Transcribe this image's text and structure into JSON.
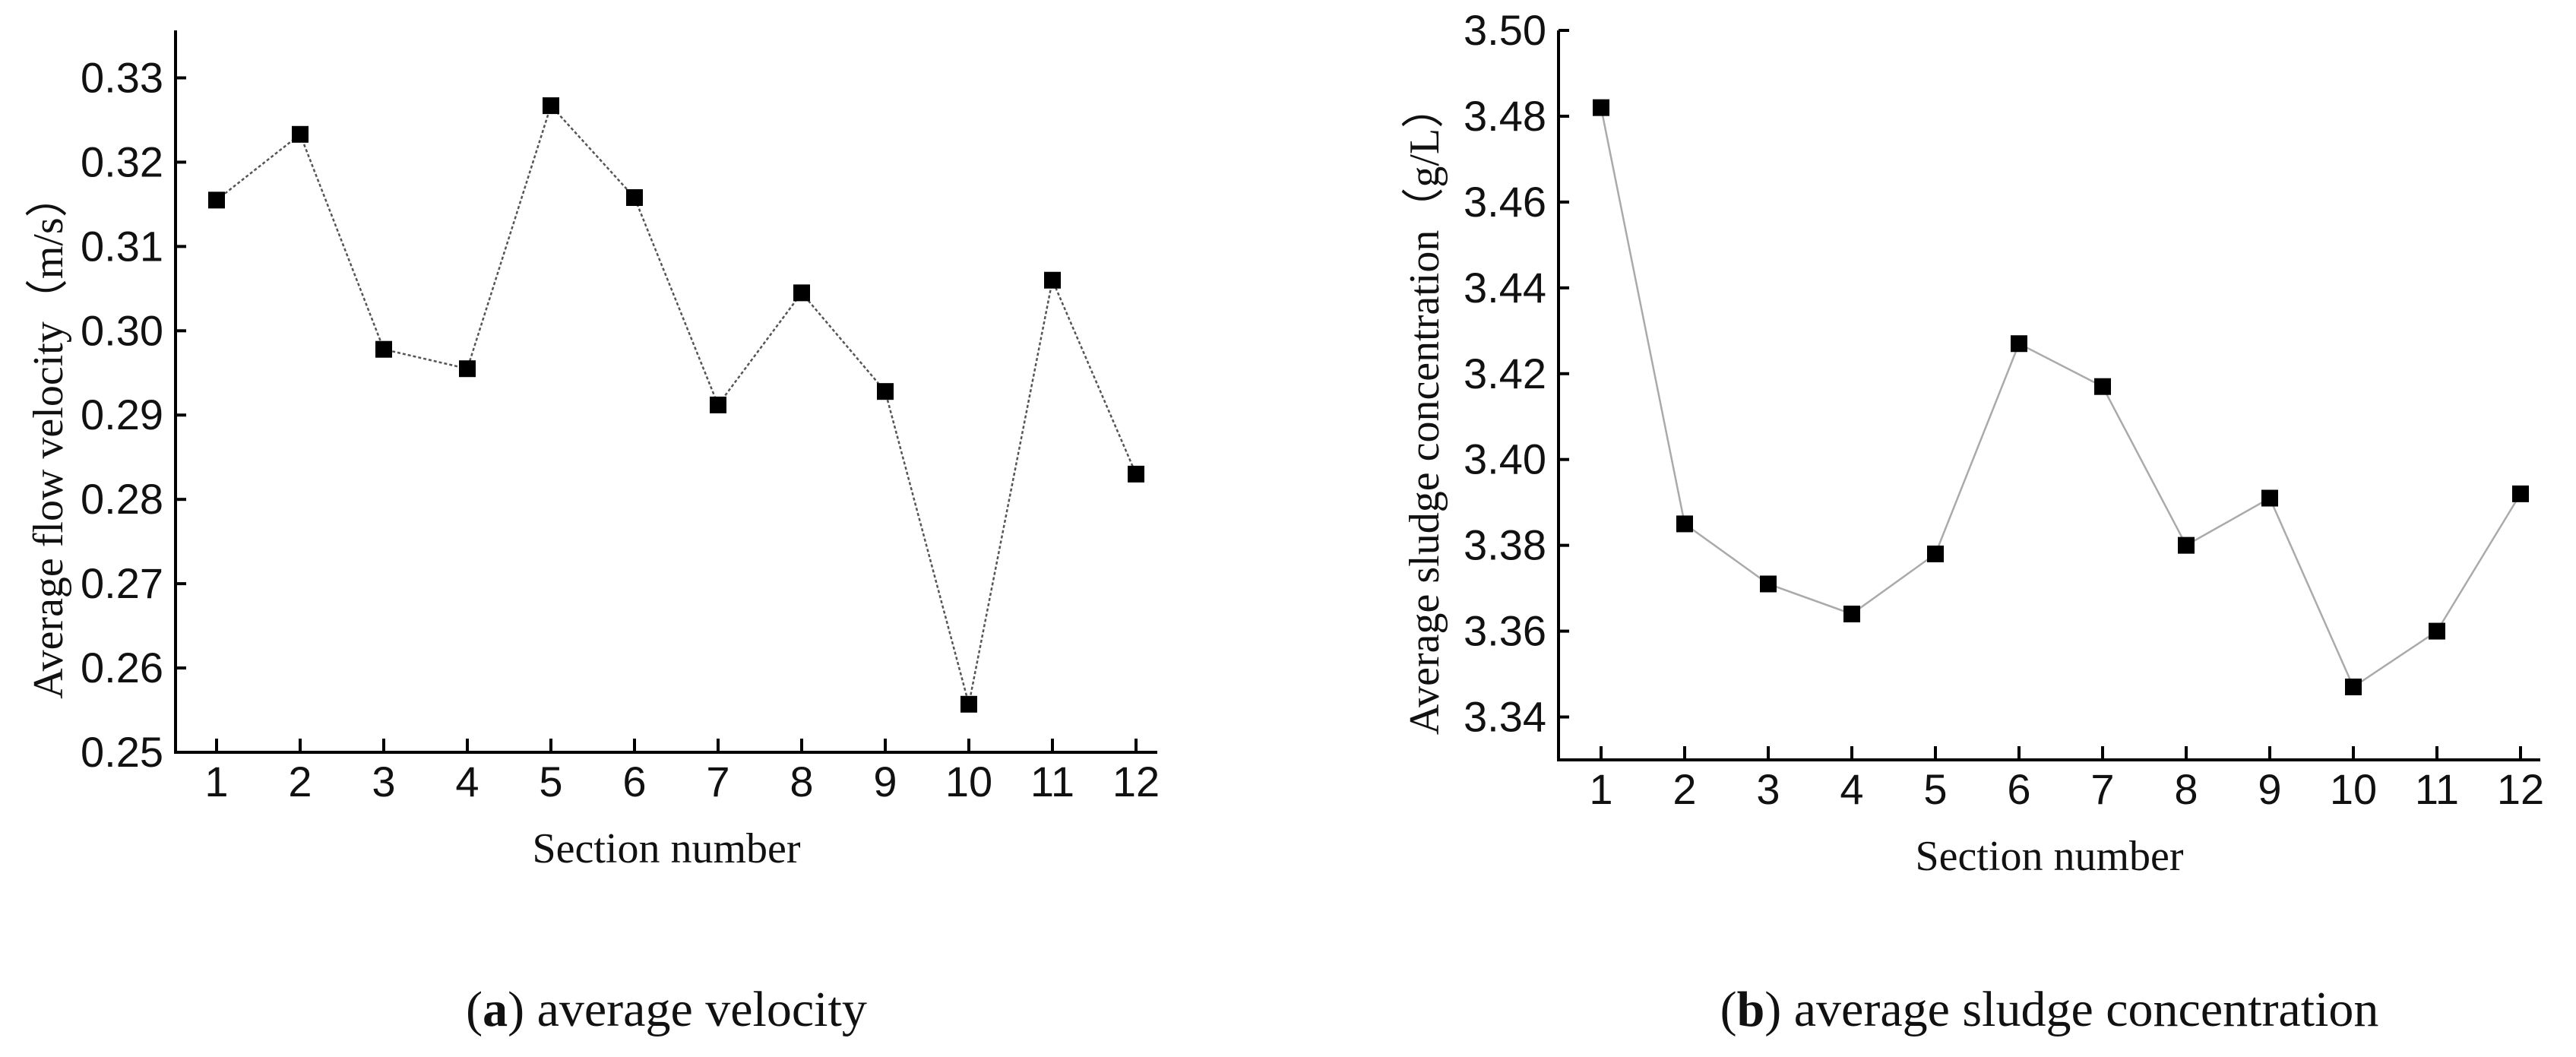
{
  "chart_data": [
    {
      "id": "a",
      "type": "line",
      "caption": {
        "letter": "a",
        "text": " average velocity"
      },
      "xlabel": "Section number",
      "ylabel": "Average flow velocity（m/s）",
      "categories": [
        "1",
        "2",
        "3",
        "4",
        "5",
        "6",
        "7",
        "8",
        "9",
        "10",
        "11",
        "12"
      ],
      "yticks": [
        "0.25",
        "0.26",
        "0.27",
        "0.28",
        "0.29",
        "0.30",
        "0.31",
        "0.32",
        "0.33"
      ],
      "ylim": [
        0.25,
        0.335
      ],
      "series": [
        {
          "name": "Average flow velocity",
          "values": [
            0.3155,
            0.3233,
            0.2978,
            0.2955,
            0.3267,
            0.3158,
            0.2912,
            0.3045,
            0.2928,
            0.2557,
            0.306,
            0.283
          ],
          "color": "#555555",
          "dashed": true
        }
      ]
    },
    {
      "id": "b",
      "type": "line",
      "caption": {
        "letter": "b",
        "text": " average sludge concentration"
      },
      "xlabel": "Section number",
      "ylabel": "Average sludge concentration（g/L）",
      "categories": [
        "1",
        "2",
        "3",
        "4",
        "5",
        "6",
        "7",
        "8",
        "9",
        "10",
        "11",
        "12"
      ],
      "yticks": [
        "3.34",
        "3.36",
        "3.38",
        "3.40",
        "3.42",
        "3.44",
        "3.46",
        "3.48",
        "3.50"
      ],
      "ylim": [
        3.33,
        3.5
      ],
      "series": [
        {
          "name": "Average sludge concentration",
          "values": [
            3.482,
            3.385,
            3.371,
            3.364,
            3.378,
            3.427,
            3.417,
            3.38,
            3.391,
            3.347,
            3.36,
            3.392
          ],
          "color": "#aaaaaa",
          "dashed": false
        }
      ]
    }
  ]
}
